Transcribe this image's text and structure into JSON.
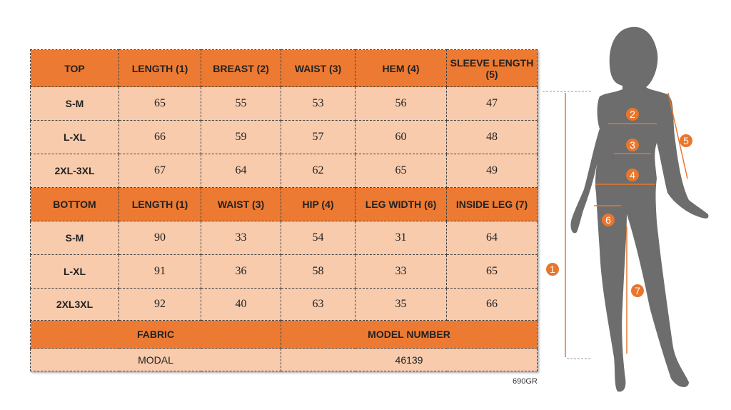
{
  "top": {
    "headers": [
      "TOP",
      "LENGTH (1)",
      "BREAST (2)",
      "WAIST (3)",
      "HEM (4)",
      "SLEEVE LENGTH (5)"
    ],
    "rows": [
      [
        "S-M",
        "65",
        "55",
        "53",
        "56",
        "47"
      ],
      [
        "L-XL",
        "66",
        "59",
        "57",
        "60",
        "48"
      ],
      [
        "2XL-3XL",
        "67",
        "64",
        "62",
        "65",
        "49"
      ]
    ]
  },
  "bottom": {
    "headers": [
      "BOTTOM",
      "LENGTH (1)",
      "WAIST (3)",
      "HIP (4)",
      "LEG WIDTH (6)",
      "INSIDE LEG (7)"
    ],
    "rows": [
      [
        "S-M",
        "90",
        "33",
        "54",
        "31",
        "64"
      ],
      [
        "L-XL",
        "91",
        "36",
        "58",
        "33",
        "65"
      ],
      [
        "2XL3XL",
        "92",
        "40",
        "63",
        "35",
        "66"
      ]
    ]
  },
  "fabric": {
    "label": "FABRIC",
    "value": "MODAL"
  },
  "model": {
    "label": "MODEL NUMBER",
    "value": "46139"
  },
  "code": "690GR",
  "figure": {
    "markers": [
      "1",
      "2",
      "3",
      "4",
      "5",
      "6",
      "7"
    ],
    "accent": "#e8762d",
    "silhouette": "#6d6d6d"
  }
}
